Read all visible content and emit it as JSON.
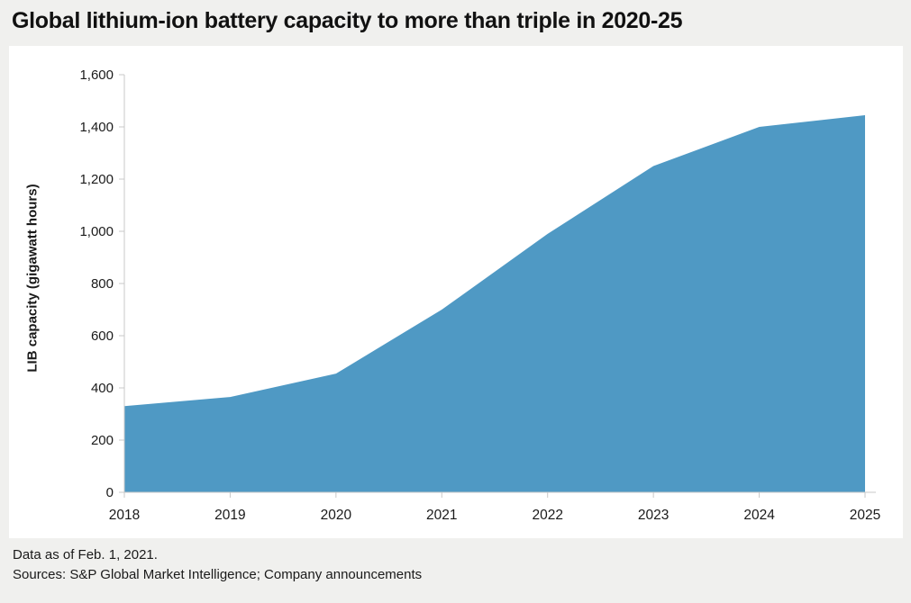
{
  "page": {
    "title": "Global lithium-ion battery capacity to more than triple in 2020-25",
    "footer": {
      "line1": "Data as of Feb. 1, 2021.",
      "line2": "Sources: S&P Global Market Intelligence; Company announcements"
    }
  },
  "colors": {
    "page_background": "#f0f0ee",
    "card_background": "#ffffff",
    "area_fill": "#4f99c4",
    "axis_line": "#c9c9c9",
    "text": "#1a1a1a"
  },
  "chart_data": {
    "type": "area",
    "title": "Global lithium-ion battery capacity to more than triple in 2020-25",
    "series_name": "LIB capacity",
    "x": [
      2018,
      2019,
      2020,
      2021,
      2022,
      2023,
      2024,
      2025
    ],
    "values": [
      330,
      365,
      455,
      700,
      990,
      1250,
      1400,
      1445
    ],
    "xlabel": "",
    "ylabel": "LIB capacity (gigawatt hours)",
    "ylim": [
      0,
      1600
    ],
    "ytick_interval": 200,
    "ytick_labels": [
      "0",
      "200",
      "400",
      "600",
      "800",
      "1,000",
      "1,200",
      "1,400",
      "1,600"
    ],
    "xtick_labels": [
      "2018",
      "2019",
      "2020",
      "2021",
      "2022",
      "2023",
      "2024",
      "2025"
    ],
    "grid": false,
    "legend": false,
    "unit": "gigawatt hours",
    "footnote": "Data as of Feb. 1, 2021.",
    "sources": "S&P Global Market Intelligence; Company announcements"
  }
}
